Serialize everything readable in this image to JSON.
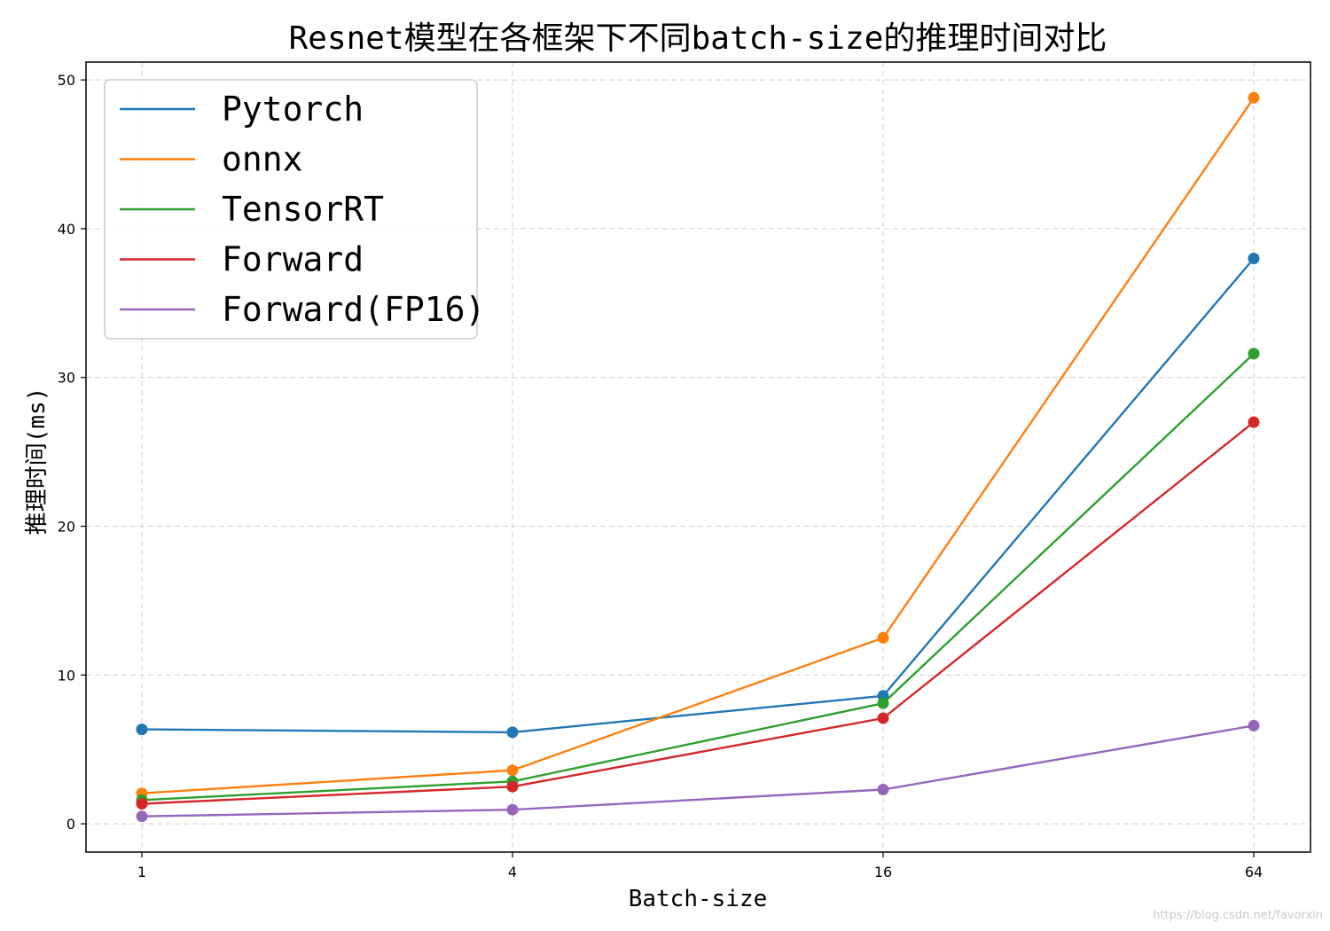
{
  "chart_data": {
    "type": "line",
    "title": "Resnet模型在各框架下不同batch-size的推理时间对比",
    "xlabel": "Batch-size",
    "ylabel": "推理时间(ms)",
    "categories": [
      "1",
      "4",
      "16",
      "64"
    ],
    "y_ticks": [
      "0",
      "10",
      "20",
      "30",
      "40",
      "50"
    ],
    "ylim": [
      -1.9,
      51.2
    ],
    "grid": true,
    "grid_style": "dashed",
    "legend_position": "top-left",
    "series": [
      {
        "name": "Pytorch",
        "color": "#1f77b4",
        "values": [
          6.35,
          6.15,
          8.6,
          38.0
        ]
      },
      {
        "name": "onnx",
        "color": "#ff7f0e",
        "values": [
          2.05,
          3.6,
          12.5,
          48.8
        ]
      },
      {
        "name": "TensorRT",
        "color": "#2ca02c",
        "values": [
          1.6,
          2.85,
          8.1,
          31.6
        ]
      },
      {
        "name": "Forward",
        "color": "#d62728",
        "values": [
          1.35,
          2.5,
          7.1,
          27.0
        ]
      },
      {
        "name": "Forward(FP16)",
        "color": "#9467bd",
        "values": [
          0.5,
          0.95,
          2.3,
          6.6
        ]
      }
    ]
  },
  "watermark": "https://blog.csdn.net/favorxin"
}
